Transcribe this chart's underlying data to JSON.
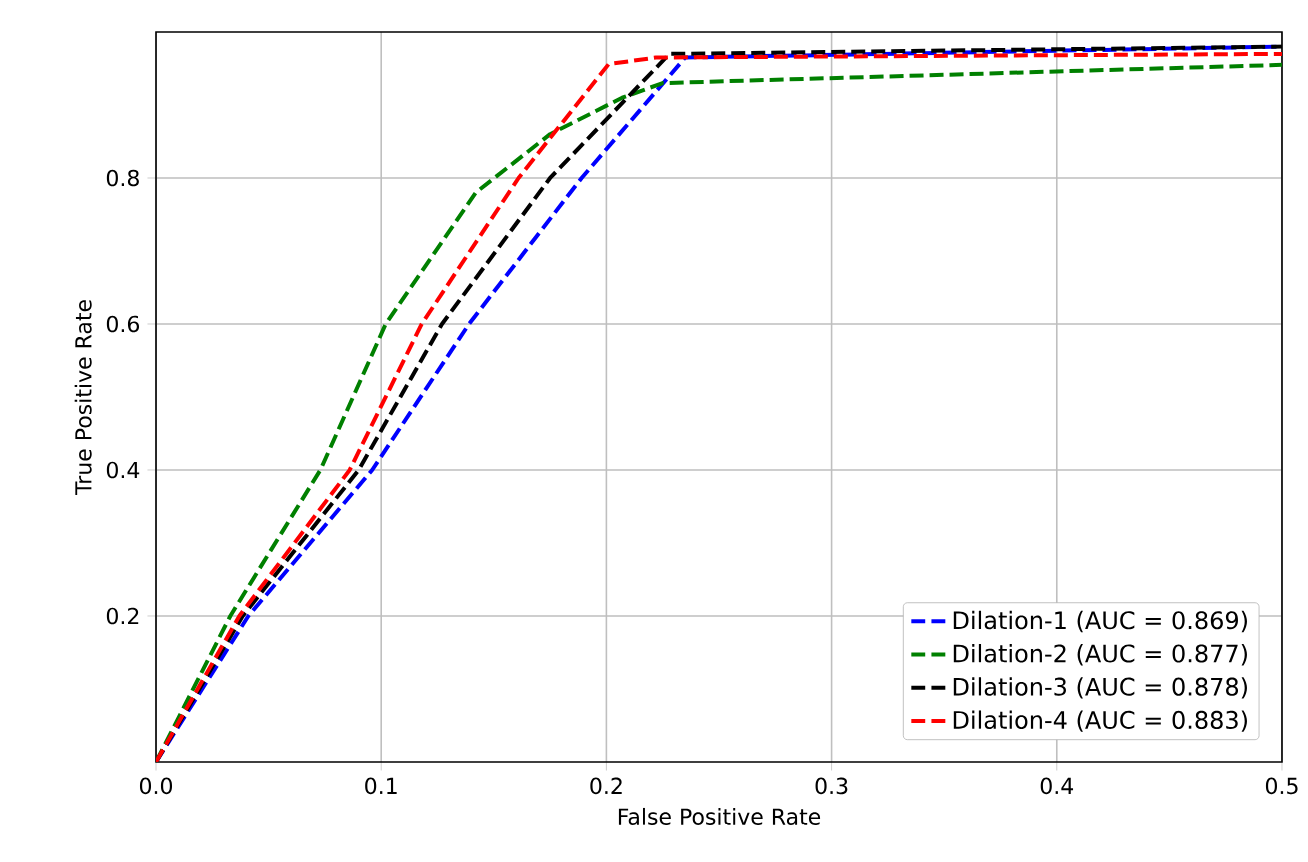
{
  "chart_data": {
    "type": "line",
    "xlabel": "False Positive Rate",
    "ylabel": "True Positive Rate",
    "xlim": [
      0,
      0.5
    ],
    "ylim": [
      0,
      1
    ],
    "xticks": [
      {
        "value": 0,
        "label": "0.0"
      },
      0.1,
      0.2,
      0.3,
      0.4,
      0.5
    ],
    "yticks": [
      {
        "value": 0.2,
        "label": "0.2"
      },
      {
        "value": 0.4,
        "label": "0.4"
      },
      {
        "value": 0.6,
        "label": "0.6"
      },
      {
        "value": 0.8,
        "label": "0.8"
      }
    ],
    "grid": true,
    "legend": "bottom right",
    "line_style": "dashed",
    "marker": "none",
    "series": [
      {
        "name": "Dilation-1 (AUC = 0.869)",
        "color": "#0000ff",
        "x": [
          0,
          0.041,
          0.096,
          0.139,
          0.189,
          0.235,
          0.5
        ],
        "values": [
          0,
          0.2,
          0.4,
          0.6,
          0.8,
          0.965,
          0.98
        ]
      },
      {
        "name": "Dilation-2 (AUC = 0.877)",
        "color": "#008000",
        "x": [
          0,
          0.033,
          0.073,
          0.102,
          0.142,
          0.175,
          0.207,
          0.225,
          0.5
        ],
        "values": [
          0,
          0.2,
          0.4,
          0.6,
          0.78,
          0.86,
          0.91,
          0.93,
          0.955
        ]
      },
      {
        "name": "Dilation-3 (AUC = 0.878)",
        "color": "#000000",
        "x": [
          0,
          0.0385,
          0.09,
          0.127,
          0.175,
          0.228,
          0.5
        ],
        "values": [
          0,
          0.2,
          0.4,
          0.6,
          0.8,
          0.97,
          0.98
        ]
      },
      {
        "name": "Dilation-4 (AUC = 0.883)",
        "color": "#ff0000",
        "x": [
          0,
          0.037,
          0.086,
          0.118,
          0.161,
          0.201,
          0.222,
          0.5
        ],
        "values": [
          0,
          0.2,
          0.4,
          0.6,
          0.8,
          0.956,
          0.965,
          0.97
        ]
      }
    ]
  }
}
